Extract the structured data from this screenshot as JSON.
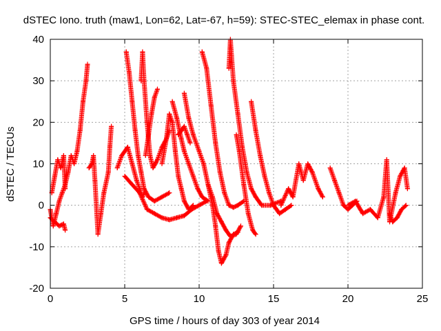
{
  "chart_data": {
    "type": "scatter",
    "title": "dSTEC Iono. truth (maw1, Lon=62, Lat=-67, h=59): STEC-STEC_elemax in phase cont.",
    "xlabel": "GPS time / hours of day 303 of year 2014",
    "ylabel": "dSTEC  / TECUs",
    "xlim": [
      0,
      25
    ],
    "ylim": [
      -20,
      40
    ],
    "xticks": [
      0,
      5,
      10,
      15,
      20,
      25
    ],
    "yticks": [
      -20,
      -10,
      0,
      10,
      20,
      30,
      40
    ],
    "grid": true,
    "legend": "none",
    "marker": "+",
    "color": "#ff0000",
    "series": [
      {
        "points": [
          [
            0.0,
            -1
          ],
          [
            0.2,
            -5
          ],
          [
            0.4,
            -2
          ],
          [
            0.6,
            1
          ],
          [
            0.8,
            3
          ],
          [
            1.0,
            5
          ],
          [
            1.2,
            8
          ],
          [
            1.4,
            12
          ],
          [
            1.6,
            10
          ],
          [
            1.8,
            13
          ],
          [
            2.0,
            18
          ],
          [
            2.2,
            25
          ],
          [
            2.4,
            30
          ],
          [
            2.5,
            34
          ]
        ]
      },
      {
        "points": [
          [
            0.0,
            -3
          ],
          [
            0.3,
            -4
          ],
          [
            0.6,
            -5
          ],
          [
            0.9,
            -4.5
          ],
          [
            1.0,
            -6
          ]
        ]
      },
      {
        "points": [
          [
            0.1,
            3
          ],
          [
            0.3,
            7
          ],
          [
            0.5,
            11
          ],
          [
            0.7,
            9
          ],
          [
            0.9,
            12
          ],
          [
            1.0,
            4
          ]
        ]
      },
      {
        "points": [
          [
            2.6,
            9
          ],
          [
            2.8,
            10
          ],
          [
            2.9,
            12
          ],
          [
            3.0,
            6
          ],
          [
            3.2,
            -7
          ],
          [
            3.4,
            -2
          ],
          [
            3.6,
            3
          ],
          [
            3.9,
            8
          ],
          [
            4.0,
            14
          ],
          [
            4.1,
            19
          ]
        ]
      },
      {
        "points": [
          [
            4.5,
            9
          ],
          [
            4.8,
            12
          ],
          [
            5.2,
            14
          ],
          [
            5.5,
            10
          ],
          [
            5.8,
            6
          ],
          [
            6.0,
            4
          ],
          [
            6.2,
            2
          ],
          [
            6.3,
            3
          ]
        ]
      },
      {
        "points": [
          [
            5.1,
            37
          ],
          [
            5.3,
            32
          ],
          [
            5.5,
            25
          ],
          [
            5.7,
            18
          ],
          [
            5.9,
            12
          ],
          [
            6.1,
            8
          ],
          [
            6.3,
            4
          ],
          [
            6.6,
            2
          ],
          [
            7.0,
            1
          ],
          [
            7.5,
            2
          ],
          [
            8.0,
            3
          ]
        ]
      },
      {
        "points": [
          [
            6.1,
            30
          ],
          [
            6.2,
            37
          ],
          [
            6.3,
            30
          ],
          [
            6.5,
            20
          ],
          [
            6.7,
            12
          ],
          [
            6.9,
            9
          ],
          [
            7.2,
            11
          ],
          [
            7.5,
            14
          ],
          [
            7.8,
            16
          ],
          [
            8.0,
            18
          ]
        ]
      },
      {
        "points": [
          [
            6.4,
            12
          ],
          [
            6.6,
            17
          ],
          [
            6.8,
            22
          ],
          [
            7.0,
            26
          ],
          [
            7.2,
            28
          ]
        ]
      },
      {
        "points": [
          [
            7.5,
            10
          ],
          [
            7.8,
            16
          ],
          [
            8.0,
            22
          ],
          [
            8.2,
            20
          ],
          [
            8.4,
            13
          ],
          [
            8.6,
            7
          ],
          [
            8.8,
            4
          ],
          [
            9.0,
            1
          ],
          [
            9.3,
            -1
          ],
          [
            9.6,
            0
          ]
        ]
      },
      {
        "points": [
          [
            5.0,
            7
          ],
          [
            5.5,
            5
          ],
          [
            6.0,
            3
          ],
          [
            6.5,
            -1
          ],
          [
            7.0,
            -2
          ],
          [
            7.5,
            -3
          ],
          [
            8.0,
            -3.5
          ],
          [
            8.5,
            -3
          ],
          [
            9.0,
            -2.5
          ],
          [
            9.5,
            -1
          ],
          [
            10.0,
            0
          ],
          [
            10.5,
            1
          ]
        ]
      },
      {
        "points": [
          [
            8.2,
            25
          ],
          [
            8.5,
            21
          ],
          [
            8.8,
            16
          ],
          [
            9.0,
            13
          ],
          [
            9.3,
            10
          ],
          [
            9.6,
            7
          ],
          [
            9.9,
            4
          ],
          [
            10.2,
            2
          ],
          [
            10.6,
            1
          ]
        ]
      },
      {
        "points": [
          [
            8.6,
            17
          ],
          [
            8.8,
            18
          ],
          [
            9.0,
            19
          ],
          [
            9.2,
            17
          ],
          [
            9.4,
            15
          ]
        ]
      },
      {
        "points": [
          [
            9.0,
            27
          ],
          [
            9.3,
            21
          ],
          [
            9.6,
            17
          ],
          [
            10.0,
            13
          ],
          [
            10.3,
            10
          ],
          [
            10.6,
            5
          ],
          [
            10.9,
            0
          ],
          [
            11.1,
            -5
          ],
          [
            11.3,
            -11
          ],
          [
            11.5,
            -14
          ],
          [
            11.8,
            -12
          ],
          [
            12.0,
            -9
          ],
          [
            12.3,
            -7
          ],
          [
            12.6,
            -6.5
          ]
        ]
      },
      {
        "points": [
          [
            10.2,
            37
          ],
          [
            10.5,
            33
          ],
          [
            10.8,
            24
          ],
          [
            11.1,
            15
          ],
          [
            11.4,
            8
          ],
          [
            11.7,
            3
          ],
          [
            12.0,
            0
          ],
          [
            12.3,
            -0.5
          ],
          [
            12.6,
            0
          ],
          [
            13.0,
            1
          ]
        ]
      },
      {
        "points": [
          [
            10.6,
            5
          ],
          [
            10.9,
            2
          ],
          [
            11.2,
            -2
          ],
          [
            11.5,
            -4
          ],
          [
            11.8,
            -6
          ],
          [
            12.1,
            -7.5
          ],
          [
            12.5,
            -7
          ],
          [
            12.8,
            -5
          ]
        ]
      },
      {
        "points": [
          [
            12.0,
            33
          ],
          [
            12.1,
            40
          ],
          [
            12.3,
            30
          ],
          [
            12.6,
            22
          ],
          [
            12.9,
            14
          ],
          [
            13.2,
            8
          ],
          [
            13.5,
            4
          ],
          [
            13.8,
            2
          ],
          [
            14.2,
            0
          ],
          [
            14.8,
            0
          ],
          [
            15.5,
            1
          ]
        ]
      },
      {
        "points": [
          [
            12.5,
            17
          ],
          [
            12.7,
            13
          ],
          [
            13.0,
            5
          ],
          [
            13.3,
            -2
          ],
          [
            13.6,
            -6
          ],
          [
            13.8,
            -7
          ]
        ]
      },
      {
        "points": [
          [
            13.5,
            25
          ],
          [
            13.8,
            18
          ],
          [
            14.1,
            12
          ],
          [
            14.4,
            7
          ],
          [
            14.7,
            3
          ],
          [
            15.0,
            0
          ],
          [
            15.4,
            -2
          ],
          [
            15.8,
            -1
          ],
          [
            16.2,
            0
          ]
        ]
      },
      {
        "points": [
          [
            15.5,
            0
          ],
          [
            16.0,
            4
          ],
          [
            16.3,
            2
          ],
          [
            16.7,
            10
          ],
          [
            17.0,
            6
          ],
          [
            17.3,
            10
          ],
          [
            17.6,
            8
          ],
          [
            18.0,
            4
          ],
          [
            18.3,
            2
          ]
        ]
      },
      {
        "points": [
          [
            18.8,
            9
          ],
          [
            19.1,
            6
          ],
          [
            19.4,
            3
          ],
          [
            19.7,
            0
          ],
          [
            20.0,
            -1
          ],
          [
            20.3,
            0
          ],
          [
            20.6,
            1
          ]
        ]
      },
      {
        "points": [
          [
            20.0,
            0
          ],
          [
            20.5,
            1
          ],
          [
            21.0,
            -2
          ],
          [
            21.5,
            -1
          ],
          [
            22.0,
            -3
          ],
          [
            22.4,
            2
          ],
          [
            22.6,
            11
          ],
          [
            22.8,
            -4
          ],
          [
            23.2,
            3
          ],
          [
            23.5,
            7
          ],
          [
            23.8,
            9
          ],
          [
            24.0,
            4
          ]
        ]
      },
      {
        "points": [
          [
            22.8,
            -2
          ],
          [
            23.0,
            -4
          ],
          [
            23.3,
            -3
          ],
          [
            23.6,
            -1
          ],
          [
            23.9,
            0
          ]
        ]
      }
    ]
  }
}
